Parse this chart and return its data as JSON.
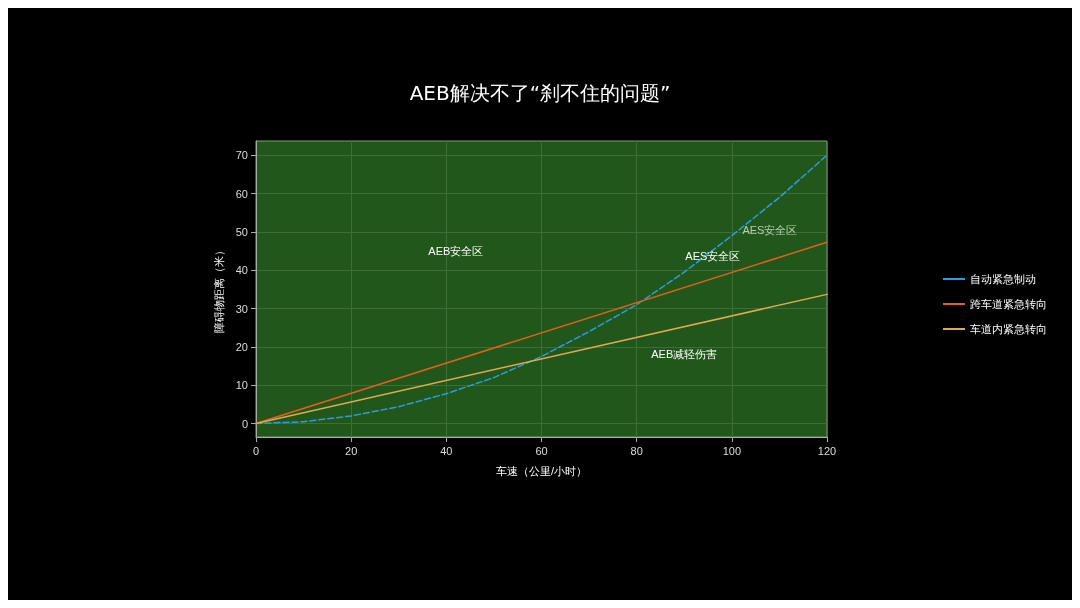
{
  "chart_data": {
    "type": "line",
    "title": "AEB解决不了“刹不住的问题”",
    "xlabel": "车速（公里/小时）",
    "ylabel": "障碍物距离（米）",
    "xlim": [
      0,
      120
    ],
    "xticks": [
      0,
      20,
      40,
      60,
      80,
      100,
      120
    ],
    "ylim": [
      -3.5,
      73.7
    ],
    "yticks": [
      0,
      10,
      20,
      30,
      40,
      50,
      60,
      70
    ],
    "grid": true,
    "legend": "right",
    "marker": "none",
    "series": [
      {
        "name": "自动紧急制动",
        "color": "#2a9de0",
        "line_style": "dashed",
        "x": [
          0,
          10,
          20,
          30,
          40,
          50,
          60,
          70,
          80,
          90,
          100,
          110,
          120
        ],
        "values": [
          0,
          0.5,
          2,
          4.4,
          7.8,
          12,
          17.5,
          24,
          31,
          39.5,
          49,
          59,
          70
        ]
      },
      {
        "name": "跨车道紧急转向",
        "color": "#e0601a",
        "line_style": "solid",
        "x": [
          0,
          120
        ],
        "values": [
          0,
          47.3
        ]
      },
      {
        "name": "车道内紧急转向",
        "color": "#e0a850",
        "line_style": "solid",
        "x": [
          0,
          120
        ],
        "values": [
          0,
          33.7
        ]
      }
    ],
    "annotations": [
      "AEB安全区",
      "AES安全区",
      "AES安全区",
      "AEB减轻伤害"
    ]
  }
}
